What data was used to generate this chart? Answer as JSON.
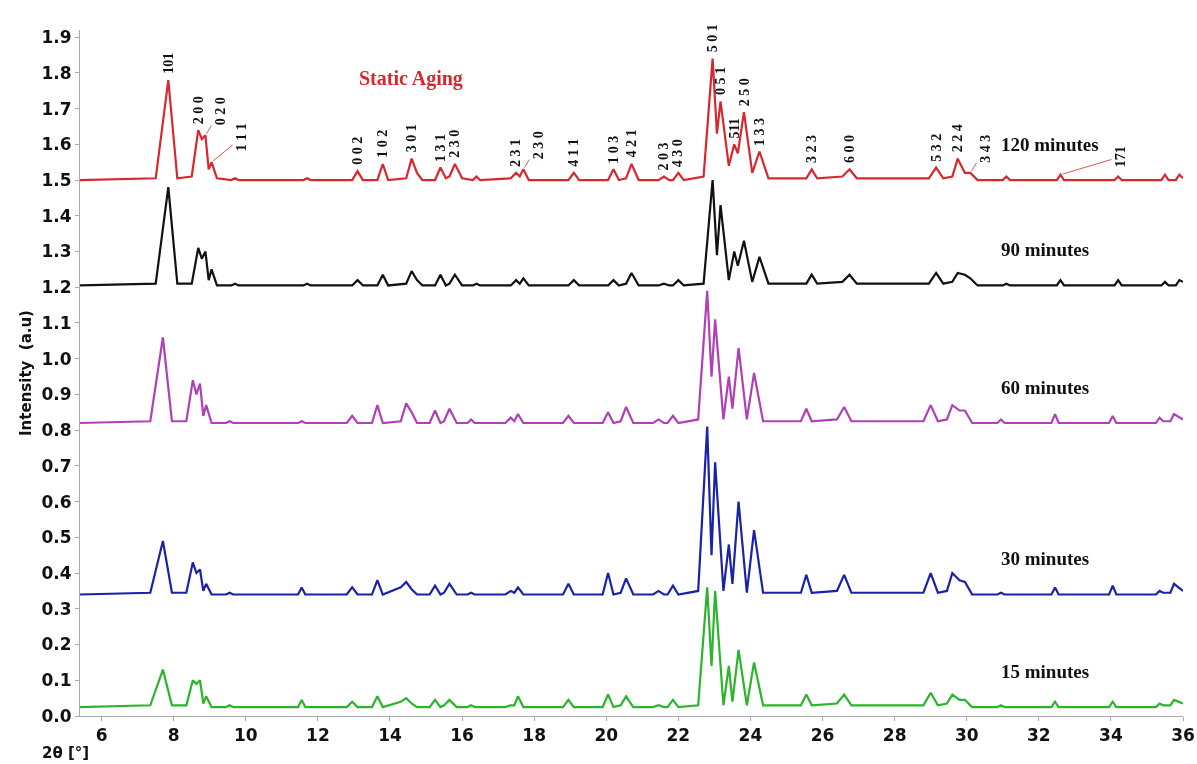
{
  "chart_data": {
    "type": "line",
    "title": "Static Aging",
    "xlabel": "2θ [°]",
    "ylabel": "Intensity  (a.u)",
    "xlim": [
      5.4,
      36
    ],
    "ylim": [
      0,
      1.92
    ],
    "grid": false,
    "legend": false,
    "xticks": [
      6,
      8,
      10,
      12,
      14,
      16,
      18,
      20,
      22,
      24,
      26,
      28,
      30,
      32,
      34,
      36
    ],
    "yticks": [
      {
        "value": 0,
        "label": "0.0"
      },
      0.1,
      0.2,
      0.3,
      0.4,
      0.5,
      0.6,
      0.7,
      0.8,
      0.9,
      {
        "value": 1,
        "label": "1.0"
      },
      1.1,
      1.2,
      1.3,
      1.4,
      1.5,
      1.6,
      1.7,
      1.8,
      1.9
    ],
    "series": [
      {
        "name": "120 minutes",
        "color": "#d7282f",
        "x": [
          5.4,
          7.5,
          7.85,
          8.1,
          8.5,
          8.68,
          8.78,
          8.88,
          8.97,
          9.05,
          9.2,
          9.6,
          9.7,
          9.8,
          11.6,
          11.7,
          11.8,
          12.95,
          13.1,
          13.25,
          13.65,
          13.8,
          13.95,
          14.45,
          14.6,
          14.75,
          14.9,
          15.25,
          15.4,
          15.55,
          15.65,
          15.8,
          16.0,
          16.3,
          16.4,
          16.5,
          17.35,
          17.5,
          17.6,
          17.7,
          17.85,
          18.95,
          19.1,
          19.25,
          20.05,
          20.2,
          20.35,
          20.55,
          20.7,
          20.9,
          21.45,
          21.6,
          21.75,
          21.85,
          22.0,
          22.15,
          22.7,
          22.95,
          23.07,
          23.17,
          23.4,
          23.55,
          23.65,
          23.82,
          24.05,
          24.25,
          24.5,
          25.55,
          25.7,
          25.85,
          26.55,
          26.75,
          26.95,
          28.95,
          29.15,
          29.35,
          29.6,
          29.75,
          29.95,
          30.1,
          30.3,
          31.0,
          31.1,
          31.2,
          32.5,
          32.6,
          32.7,
          34.1,
          34.2,
          34.3,
          35.4,
          35.5,
          35.6,
          35.8,
          35.9,
          36.0
        ],
        "values": [
          1.5,
          1.505,
          1.78,
          1.505,
          1.51,
          1.64,
          1.615,
          1.625,
          1.53,
          1.55,
          1.505,
          1.5,
          1.505,
          1.5,
          1.5,
          1.505,
          1.5,
          1.5,
          1.525,
          1.5,
          1.5,
          1.545,
          1.5,
          1.505,
          1.56,
          1.52,
          1.5,
          1.5,
          1.535,
          1.505,
          1.51,
          1.545,
          1.505,
          1.5,
          1.51,
          1.5,
          1.505,
          1.52,
          1.51,
          1.53,
          1.5,
          1.5,
          1.52,
          1.5,
          1.5,
          1.53,
          1.5,
          1.505,
          1.545,
          1.5,
          1.5,
          1.51,
          1.5,
          1.5,
          1.52,
          1.5,
          1.51,
          1.84,
          1.63,
          1.72,
          1.54,
          1.6,
          1.575,
          1.69,
          1.52,
          1.58,
          1.505,
          1.505,
          1.53,
          1.505,
          1.51,
          1.53,
          1.505,
          1.505,
          1.535,
          1.505,
          1.51,
          1.56,
          1.52,
          1.52,
          1.5,
          1.5,
          1.51,
          1.5,
          1.5,
          1.515,
          1.5,
          1.5,
          1.51,
          1.5,
          1.5,
          1.515,
          1.5,
          1.5,
          1.515,
          1.505
        ]
      },
      {
        "name": "90 minutes",
        "color": "#111111",
        "x": [
          5.4,
          7.5,
          7.85,
          8.1,
          8.5,
          8.68,
          8.78,
          8.88,
          8.97,
          9.05,
          9.2,
          9.6,
          9.7,
          9.8,
          11.6,
          11.7,
          11.8,
          12.95,
          13.1,
          13.25,
          13.65,
          13.8,
          13.95,
          14.45,
          14.6,
          14.75,
          14.9,
          15.25,
          15.4,
          15.55,
          15.65,
          15.8,
          16.0,
          16.3,
          16.4,
          16.5,
          17.35,
          17.5,
          17.6,
          17.7,
          17.85,
          18.95,
          19.1,
          19.25,
          20.05,
          20.2,
          20.35,
          20.55,
          20.7,
          20.9,
          21.45,
          21.6,
          21.75,
          21.85,
          22.0,
          22.15,
          22.7,
          22.95,
          23.07,
          23.17,
          23.4,
          23.55,
          23.65,
          23.82,
          24.05,
          24.25,
          24.5,
          25.55,
          25.7,
          25.85,
          26.55,
          26.75,
          26.95,
          28.95,
          29.15,
          29.35,
          29.6,
          29.75,
          29.95,
          30.1,
          30.3,
          31.0,
          31.1,
          31.2,
          32.5,
          32.6,
          32.7,
          34.1,
          34.2,
          34.3,
          35.4,
          35.5,
          35.6,
          35.8,
          35.9,
          36.0
        ],
        "values": [
          1.205,
          1.21,
          1.48,
          1.21,
          1.21,
          1.31,
          1.28,
          1.3,
          1.22,
          1.25,
          1.205,
          1.205,
          1.21,
          1.205,
          1.205,
          1.21,
          1.205,
          1.205,
          1.22,
          1.205,
          1.205,
          1.235,
          1.205,
          1.21,
          1.245,
          1.22,
          1.205,
          1.205,
          1.235,
          1.205,
          1.21,
          1.235,
          1.205,
          1.205,
          1.21,
          1.205,
          1.205,
          1.22,
          1.21,
          1.225,
          1.205,
          1.205,
          1.22,
          1.205,
          1.205,
          1.22,
          1.205,
          1.21,
          1.24,
          1.205,
          1.205,
          1.21,
          1.205,
          1.205,
          1.22,
          1.205,
          1.21,
          1.5,
          1.29,
          1.43,
          1.22,
          1.3,
          1.26,
          1.33,
          1.215,
          1.285,
          1.21,
          1.21,
          1.235,
          1.21,
          1.215,
          1.235,
          1.21,
          1.21,
          1.24,
          1.21,
          1.215,
          1.24,
          1.235,
          1.225,
          1.205,
          1.205,
          1.21,
          1.205,
          1.205,
          1.22,
          1.205,
          1.205,
          1.22,
          1.205,
          1.205,
          1.215,
          1.205,
          1.205,
          1.22,
          1.215
        ]
      },
      {
        "name": "60 minutes",
        "color": "#b040b8",
        "x": [
          5.4,
          7.35,
          7.7,
          7.95,
          8.35,
          8.53,
          8.63,
          8.73,
          8.82,
          8.9,
          9.05,
          9.45,
          9.55,
          9.65,
          11.45,
          11.55,
          11.65,
          12.8,
          12.95,
          13.1,
          13.5,
          13.65,
          13.8,
          14.3,
          14.45,
          14.6,
          14.75,
          15.1,
          15.25,
          15.4,
          15.5,
          15.65,
          15.85,
          16.15,
          16.25,
          16.35,
          17.2,
          17.35,
          17.45,
          17.55,
          17.7,
          18.8,
          18.95,
          19.1,
          19.9,
          20.05,
          20.2,
          20.4,
          20.55,
          20.75,
          21.3,
          21.45,
          21.6,
          21.7,
          21.85,
          22.0,
          22.55,
          22.8,
          22.92,
          23.02,
          23.25,
          23.4,
          23.5,
          23.67,
          23.9,
          24.1,
          24.35,
          25.4,
          25.55,
          25.7,
          26.4,
          26.6,
          26.8,
          28.8,
          29.0,
          29.2,
          29.45,
          29.6,
          29.8,
          29.95,
          30.15,
          30.85,
          30.95,
          31.05,
          32.35,
          32.45,
          32.55,
          33.95,
          34.05,
          34.15,
          35.25,
          35.35,
          35.45,
          35.65,
          35.75,
          36.0
        ],
        "values": [
          0.82,
          0.825,
          1.06,
          0.825,
          0.825,
          0.94,
          0.9,
          0.93,
          0.84,
          0.87,
          0.82,
          0.82,
          0.825,
          0.82,
          0.82,
          0.825,
          0.82,
          0.82,
          0.84,
          0.82,
          0.82,
          0.87,
          0.82,
          0.825,
          0.875,
          0.85,
          0.82,
          0.82,
          0.855,
          0.82,
          0.825,
          0.86,
          0.82,
          0.82,
          0.83,
          0.82,
          0.82,
          0.835,
          0.825,
          0.845,
          0.82,
          0.82,
          0.84,
          0.82,
          0.82,
          0.85,
          0.82,
          0.825,
          0.865,
          0.82,
          0.82,
          0.83,
          0.82,
          0.82,
          0.84,
          0.82,
          0.83,
          1.19,
          0.95,
          1.11,
          0.83,
          0.95,
          0.86,
          1.03,
          0.83,
          0.96,
          0.825,
          0.825,
          0.86,
          0.825,
          0.83,
          0.865,
          0.825,
          0.825,
          0.87,
          0.825,
          0.83,
          0.87,
          0.855,
          0.855,
          0.82,
          0.82,
          0.83,
          0.82,
          0.82,
          0.845,
          0.82,
          0.82,
          0.84,
          0.82,
          0.82,
          0.835,
          0.825,
          0.825,
          0.845,
          0.83
        ]
      },
      {
        "name": "30 minutes",
        "color": "#1a22a8",
        "x": [
          5.4,
          7.35,
          7.7,
          7.95,
          8.35,
          8.53,
          8.63,
          8.73,
          8.82,
          8.9,
          9.05,
          9.45,
          9.55,
          9.65,
          11.45,
          11.55,
          11.65,
          12.8,
          12.95,
          13.1,
          13.5,
          13.65,
          13.8,
          14.3,
          14.45,
          14.6,
          14.75,
          15.1,
          15.25,
          15.4,
          15.5,
          15.65,
          15.85,
          16.15,
          16.25,
          16.35,
          17.2,
          17.35,
          17.45,
          17.55,
          17.7,
          18.8,
          18.95,
          19.1,
          19.9,
          20.05,
          20.2,
          20.4,
          20.55,
          20.75,
          21.3,
          21.45,
          21.6,
          21.7,
          21.85,
          22.0,
          22.55,
          22.8,
          22.92,
          23.02,
          23.25,
          23.4,
          23.5,
          23.67,
          23.9,
          24.1,
          24.35,
          25.4,
          25.55,
          25.7,
          26.4,
          26.6,
          26.8,
          28.8,
          29.0,
          29.2,
          29.45,
          29.6,
          29.8,
          29.95,
          30.15,
          30.85,
          30.95,
          31.05,
          32.35,
          32.45,
          32.55,
          33.95,
          34.05,
          34.15,
          35.25,
          35.35,
          35.45,
          35.65,
          35.75,
          36.0
        ],
        "values": [
          0.34,
          0.345,
          0.49,
          0.345,
          0.345,
          0.43,
          0.4,
          0.41,
          0.35,
          0.37,
          0.34,
          0.34,
          0.345,
          0.34,
          0.34,
          0.36,
          0.34,
          0.34,
          0.36,
          0.34,
          0.34,
          0.38,
          0.34,
          0.36,
          0.375,
          0.355,
          0.34,
          0.34,
          0.365,
          0.34,
          0.345,
          0.37,
          0.34,
          0.34,
          0.345,
          0.34,
          0.34,
          0.35,
          0.345,
          0.36,
          0.34,
          0.34,
          0.37,
          0.34,
          0.34,
          0.4,
          0.34,
          0.345,
          0.385,
          0.34,
          0.34,
          0.35,
          0.34,
          0.34,
          0.365,
          0.34,
          0.35,
          0.81,
          0.45,
          0.71,
          0.35,
          0.48,
          0.37,
          0.6,
          0.345,
          0.52,
          0.345,
          0.345,
          0.395,
          0.345,
          0.35,
          0.395,
          0.345,
          0.345,
          0.4,
          0.345,
          0.35,
          0.4,
          0.38,
          0.375,
          0.34,
          0.34,
          0.345,
          0.34,
          0.34,
          0.36,
          0.34,
          0.34,
          0.365,
          0.34,
          0.34,
          0.35,
          0.345,
          0.345,
          0.37,
          0.35
        ]
      },
      {
        "name": "15 minutes",
        "color": "#2cb52c",
        "x": [
          5.4,
          7.35,
          7.7,
          7.95,
          8.35,
          8.53,
          8.63,
          8.73,
          8.82,
          8.9,
          9.05,
          9.45,
          9.55,
          9.65,
          11.45,
          11.55,
          11.65,
          12.8,
          12.95,
          13.1,
          13.5,
          13.65,
          13.8,
          14.3,
          14.45,
          14.6,
          14.75,
          15.1,
          15.25,
          15.4,
          15.5,
          15.65,
          15.85,
          16.15,
          16.25,
          16.35,
          17.2,
          17.35,
          17.45,
          17.55,
          17.7,
          18.8,
          18.95,
          19.1,
          19.9,
          20.05,
          20.2,
          20.4,
          20.55,
          20.75,
          21.3,
          21.45,
          21.6,
          21.7,
          21.85,
          22.0,
          22.55,
          22.8,
          22.92,
          23.02,
          23.25,
          23.4,
          23.5,
          23.67,
          23.9,
          24.1,
          24.35,
          25.4,
          25.55,
          25.7,
          26.4,
          26.6,
          26.8,
          28.8,
          29.0,
          29.2,
          29.45,
          29.6,
          29.8,
          29.95,
          30.15,
          30.85,
          30.95,
          31.05,
          32.35,
          32.45,
          32.55,
          33.95,
          34.05,
          34.15,
          35.25,
          35.35,
          35.45,
          35.65,
          35.75,
          36.0
        ],
        "values": [
          0.025,
          0.03,
          0.13,
          0.03,
          0.03,
          0.1,
          0.09,
          0.1,
          0.035,
          0.055,
          0.025,
          0.025,
          0.03,
          0.025,
          0.025,
          0.045,
          0.025,
          0.025,
          0.04,
          0.025,
          0.025,
          0.055,
          0.025,
          0.04,
          0.05,
          0.035,
          0.025,
          0.025,
          0.045,
          0.025,
          0.03,
          0.045,
          0.025,
          0.025,
          0.03,
          0.025,
          0.025,
          0.03,
          0.03,
          0.055,
          0.025,
          0.025,
          0.045,
          0.025,
          0.025,
          0.06,
          0.025,
          0.03,
          0.055,
          0.025,
          0.025,
          0.03,
          0.025,
          0.025,
          0.045,
          0.025,
          0.03,
          0.36,
          0.14,
          0.35,
          0.03,
          0.14,
          0.04,
          0.185,
          0.03,
          0.15,
          0.03,
          0.03,
          0.06,
          0.03,
          0.035,
          0.06,
          0.03,
          0.03,
          0.065,
          0.03,
          0.035,
          0.06,
          0.045,
          0.045,
          0.025,
          0.025,
          0.03,
          0.025,
          0.025,
          0.04,
          0.025,
          0.025,
          0.04,
          0.025,
          0.025,
          0.035,
          0.03,
          0.03,
          0.045,
          0.035
        ]
      }
    ],
    "annotations": [
      {
        "text": "101",
        "x": 7.85,
        "y": 1.78
      },
      {
        "text": "2 0 0",
        "x": 8.68,
        "y": 1.64
      },
      {
        "text": "0 2 0",
        "x": 8.88,
        "y": 1.625
      },
      {
        "text": "1 1 1",
        "x": 9.05,
        "y": 1.55
      },
      {
        "text": "0 0 2",
        "x": 13.1,
        "y": 1.525
      },
      {
        "text": "1 0 2",
        "x": 13.8,
        "y": 1.545
      },
      {
        "text": "3 0 1",
        "x": 14.6,
        "y": 1.56
      },
      {
        "text": "1 3 1",
        "x": 15.4,
        "y": 1.535
      },
      {
        "text": "2 3 0",
        "x": 15.8,
        "y": 1.545
      },
      {
        "text": "2 3 1",
        "x": 17.5,
        "y": 1.52
      },
      {
        "text": "2 3 0",
        "x": 17.7,
        "y": 1.53
      },
      {
        "text": "4 1 1",
        "x": 19.1,
        "y": 1.52
      },
      {
        "text": "1 0 3",
        "x": 20.2,
        "y": 1.53
      },
      {
        "text": "4 2 1",
        "x": 20.7,
        "y": 1.545
      },
      {
        "text": "2 0 3",
        "x": 21.6,
        "y": 1.51
      },
      {
        "text": "4 3 0",
        "x": 22.0,
        "y": 1.52
      },
      {
        "text": "5 0 1",
        "x": 22.95,
        "y": 1.84
      },
      {
        "text": "0 5 1",
        "x": 23.17,
        "y": 1.72
      },
      {
        "text": "511",
        "x": 23.55,
        "y": 1.6
      },
      {
        "text": "2 5 0",
        "x": 23.82,
        "y": 1.69
      },
      {
        "text": "1 3 3",
        "x": 24.25,
        "y": 1.58
      },
      {
        "text": "3 2 3",
        "x": 25.7,
        "y": 1.53
      },
      {
        "text": "6 0 0",
        "x": 26.75,
        "y": 1.53
      },
      {
        "text": "5 3 2",
        "x": 29.15,
        "y": 1.535
      },
      {
        "text": "2 2 4",
        "x": 29.75,
        "y": 1.56
      },
      {
        "text": "3 4 3",
        "x": 30.1,
        "y": 1.52
      },
      {
        "text": "171",
        "x": 32.6,
        "y": 1.515
      }
    ]
  }
}
